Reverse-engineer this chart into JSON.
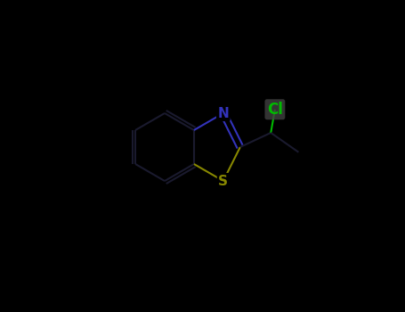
{
  "background_color": "#000000",
  "bond_color": "#1a1a2e",
  "N_color": "#3333bb",
  "S_color": "#888800",
  "Cl_color": "#00bb00",
  "Cl_label": "Cl",
  "N_label": "N",
  "S_label": "S",
  "figsize": [
    4.55,
    3.5
  ],
  "dpi": 100,
  "atoms": {
    "N": {
      "label": "N",
      "color": "#3333bb",
      "fontsize": 11
    },
    "S": {
      "label": "S",
      "color": "#888800",
      "fontsize": 11
    },
    "Cl": {
      "label": "Cl",
      "color": "#00bb00",
      "fontsize": 12
    }
  }
}
